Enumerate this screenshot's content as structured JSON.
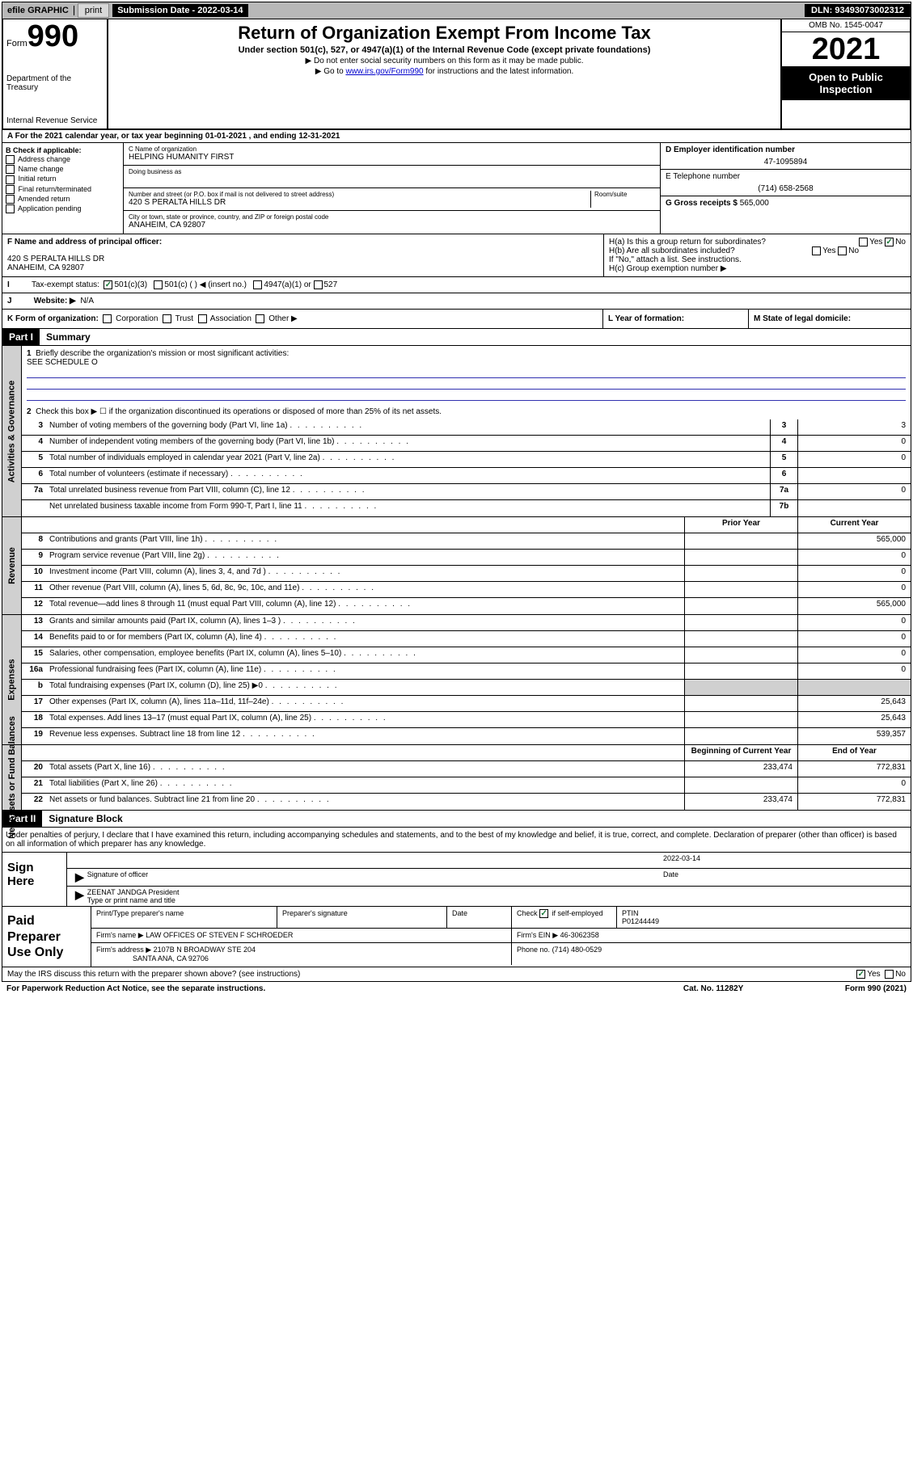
{
  "top": {
    "efile": "efile GRAPHIC",
    "print": "print",
    "sub_date_lbl": "Submission Date - 2022-03-14",
    "dln": "DLN: 93493073002312"
  },
  "hdr": {
    "form": "Form",
    "num": "990",
    "title": "Return of Organization Exempt From Income Tax",
    "sub": "Under section 501(c), 527, or 4947(a)(1) of the Internal Revenue Code (except private foundations)",
    "note1": "▶ Do not enter social security numbers on this form as it may be made public.",
    "note2_pre": "▶ Go to ",
    "note2_link": "www.irs.gov/Form990",
    "note2_post": " for instructions and the latest information.",
    "dept": "Department of the Treasury",
    "irs": "Internal Revenue Service",
    "omb": "OMB No. 1545-0047",
    "year": "2021",
    "open": "Open to Public Inspection"
  },
  "rowA": "A For the 2021 calendar year, or tax year beginning 01-01-2021   , and ending 12-31-2021",
  "colB": {
    "lbl": "B Check if applicable:",
    "opts": [
      "Address change",
      "Name change",
      "Initial return",
      "Final return/terminated",
      "Amended return",
      "Application pending"
    ]
  },
  "colC": {
    "name_lbl": "C Name of organization",
    "name": "HELPING HUMANITY FIRST",
    "dba_lbl": "Doing business as",
    "addr_lbl": "Number and street (or P.O. box if mail is not delivered to street address)",
    "room_lbl": "Room/suite",
    "addr": "420 S PERALTA HILLS DR",
    "city_lbl": "City or town, state or province, country, and ZIP or foreign postal code",
    "city": "ANAHEIM, CA  92807"
  },
  "colD": {
    "ein_lbl": "D Employer identification number",
    "ein": "47-1095894",
    "tel_lbl": "E Telephone number",
    "tel": "(714) 658-2568",
    "gross_lbl": "G Gross receipts $",
    "gross": "565,000"
  },
  "rowF": {
    "lbl": "F  Name and address of principal officer:",
    "addr1": "420 S PERALTA HILLS DR",
    "addr2": "ANAHEIM, CA  92807"
  },
  "rowH": {
    "ha": "H(a)  Is this a group return for subordinates?",
    "hb": "H(b)  Are all subordinates included?",
    "hb_note": "If \"No,\" attach a list. See instructions.",
    "hc": "H(c)  Group exemption number ▶",
    "yes": "Yes",
    "no": "No"
  },
  "rowI": {
    "lbl": "Tax-exempt status:",
    "opts": [
      "501(c)(3)",
      "501(c) (  ) ◀ (insert no.)",
      "4947(a)(1) or",
      "527"
    ]
  },
  "rowJ": {
    "lbl": "Website: ▶",
    "val": "N/A"
  },
  "rowK": {
    "lbl": "K Form of organization:",
    "opts": [
      "Corporation",
      "Trust",
      "Association",
      "Other ▶"
    ],
    "l_lbl": "L Year of formation:",
    "m_lbl": "M State of legal domicile:"
  },
  "part1": {
    "hdr": "Part I",
    "title": "Summary"
  },
  "gov": {
    "tab": "Activities & Governance",
    "l1": "Briefly describe the organization's mission or most significant activities:",
    "l1v": "SEE SCHEDULE O",
    "l2": "Check this box ▶ ☐  if the organization discontinued its operations or disposed of more than 25% of its net assets.",
    "lines": [
      {
        "n": "3",
        "t": "Number of voting members of the governing body (Part VI, line 1a)",
        "bn": "3",
        "v": "3"
      },
      {
        "n": "4",
        "t": "Number of independent voting members of the governing body (Part VI, line 1b)",
        "bn": "4",
        "v": "0"
      },
      {
        "n": "5",
        "t": "Total number of individuals employed in calendar year 2021 (Part V, line 2a)",
        "bn": "5",
        "v": "0"
      },
      {
        "n": "6",
        "t": "Total number of volunteers (estimate if necessary)",
        "bn": "6",
        "v": ""
      },
      {
        "n": "7a",
        "t": "Total unrelated business revenue from Part VIII, column (C), line 12",
        "bn": "7a",
        "v": "0"
      },
      {
        "n": "",
        "t": "Net unrelated business taxable income from Form 990-T, Part I, line 11",
        "bn": "7b",
        "v": ""
      }
    ]
  },
  "rev": {
    "tab": "Revenue",
    "hdr_prior": "Prior Year",
    "hdr_curr": "Current Year",
    "lines": [
      {
        "n": "8",
        "t": "Contributions and grants (Part VIII, line 1h)",
        "p": "",
        "c": "565,000"
      },
      {
        "n": "9",
        "t": "Program service revenue (Part VIII, line 2g)",
        "p": "",
        "c": "0"
      },
      {
        "n": "10",
        "t": "Investment income (Part VIII, column (A), lines 3, 4, and 7d )",
        "p": "",
        "c": "0"
      },
      {
        "n": "11",
        "t": "Other revenue (Part VIII, column (A), lines 5, 6d, 8c, 9c, 10c, and 11e)",
        "p": "",
        "c": "0"
      },
      {
        "n": "12",
        "t": "Total revenue—add lines 8 through 11 (must equal Part VIII, column (A), line 12)",
        "p": "",
        "c": "565,000"
      }
    ]
  },
  "exp": {
    "tab": "Expenses",
    "lines": [
      {
        "n": "13",
        "t": "Grants and similar amounts paid (Part IX, column (A), lines 1–3 )",
        "p": "",
        "c": "0"
      },
      {
        "n": "14",
        "t": "Benefits paid to or for members (Part IX, column (A), line 4)",
        "p": "",
        "c": "0"
      },
      {
        "n": "15",
        "t": "Salaries, other compensation, employee benefits (Part IX, column (A), lines 5–10)",
        "p": "",
        "c": "0"
      },
      {
        "n": "16a",
        "t": "Professional fundraising fees (Part IX, column (A), line 11e)",
        "p": "",
        "c": "0"
      },
      {
        "n": "b",
        "t": "Total fundraising expenses (Part IX, column (D), line 25) ▶0",
        "p": "shade",
        "c": "shade"
      },
      {
        "n": "17",
        "t": "Other expenses (Part IX, column (A), lines 11a–11d, 11f–24e)",
        "p": "",
        "c": "25,643"
      },
      {
        "n": "18",
        "t": "Total expenses. Add lines 13–17 (must equal Part IX, column (A), line 25)",
        "p": "",
        "c": "25,643"
      },
      {
        "n": "19",
        "t": "Revenue less expenses. Subtract line 18 from line 12",
        "p": "",
        "c": "539,357"
      }
    ]
  },
  "net": {
    "tab": "Net Assets or Fund Balances",
    "hdr_beg": "Beginning of Current Year",
    "hdr_end": "End of Year",
    "lines": [
      {
        "n": "20",
        "t": "Total assets (Part X, line 16)",
        "p": "233,474",
        "c": "772,831"
      },
      {
        "n": "21",
        "t": "Total liabilities (Part X, line 26)",
        "p": "",
        "c": "0"
      },
      {
        "n": "22",
        "t": "Net assets or fund balances. Subtract line 21 from line 20",
        "p": "233,474",
        "c": "772,831"
      }
    ]
  },
  "part2": {
    "hdr": "Part II",
    "title": "Signature Block"
  },
  "sig": {
    "decl": "Under penalties of perjury, I declare that I have examined this return, including accompanying schedules and statements, and to the best of my knowledge and belief, it is true, correct, and complete. Declaration of preparer (other than officer) is based on all information of which preparer has any knowledge.",
    "sign_here": "Sign Here",
    "sig_lbl": "Signature of officer",
    "date_lbl": "Date",
    "date": "2022-03-14",
    "name": "ZEENAT JANDGA  President",
    "name_lbl": "Type or print name and title"
  },
  "prep": {
    "lbl": "Paid Preparer Use Only",
    "h1": "Print/Type preparer's name",
    "h2": "Preparer's signature",
    "h3": "Date",
    "h4_pre": "Check",
    "h4_post": "if self-employed",
    "h5": "PTIN",
    "ptin": "P01244449",
    "firm_lbl": "Firm's name     ▶",
    "firm": "LAW OFFICES OF STEVEN F SCHROEDER",
    "ein_lbl": "Firm's EIN ▶",
    "ein": "46-3062358",
    "addr_lbl": "Firm's address ▶",
    "addr1": "2107B N BROADWAY STE 204",
    "addr2": "SANTA ANA, CA  92706",
    "ph_lbl": "Phone no.",
    "ph": "(714) 480-0529"
  },
  "foot": {
    "q": "May the IRS discuss this return with the preparer shown above? (see instructions)",
    "yes": "Yes",
    "no": "No",
    "pra": "For Paperwork Reduction Act Notice, see the separate instructions.",
    "cat": "Cat. No. 11282Y",
    "form": "Form 990 (2021)"
  }
}
